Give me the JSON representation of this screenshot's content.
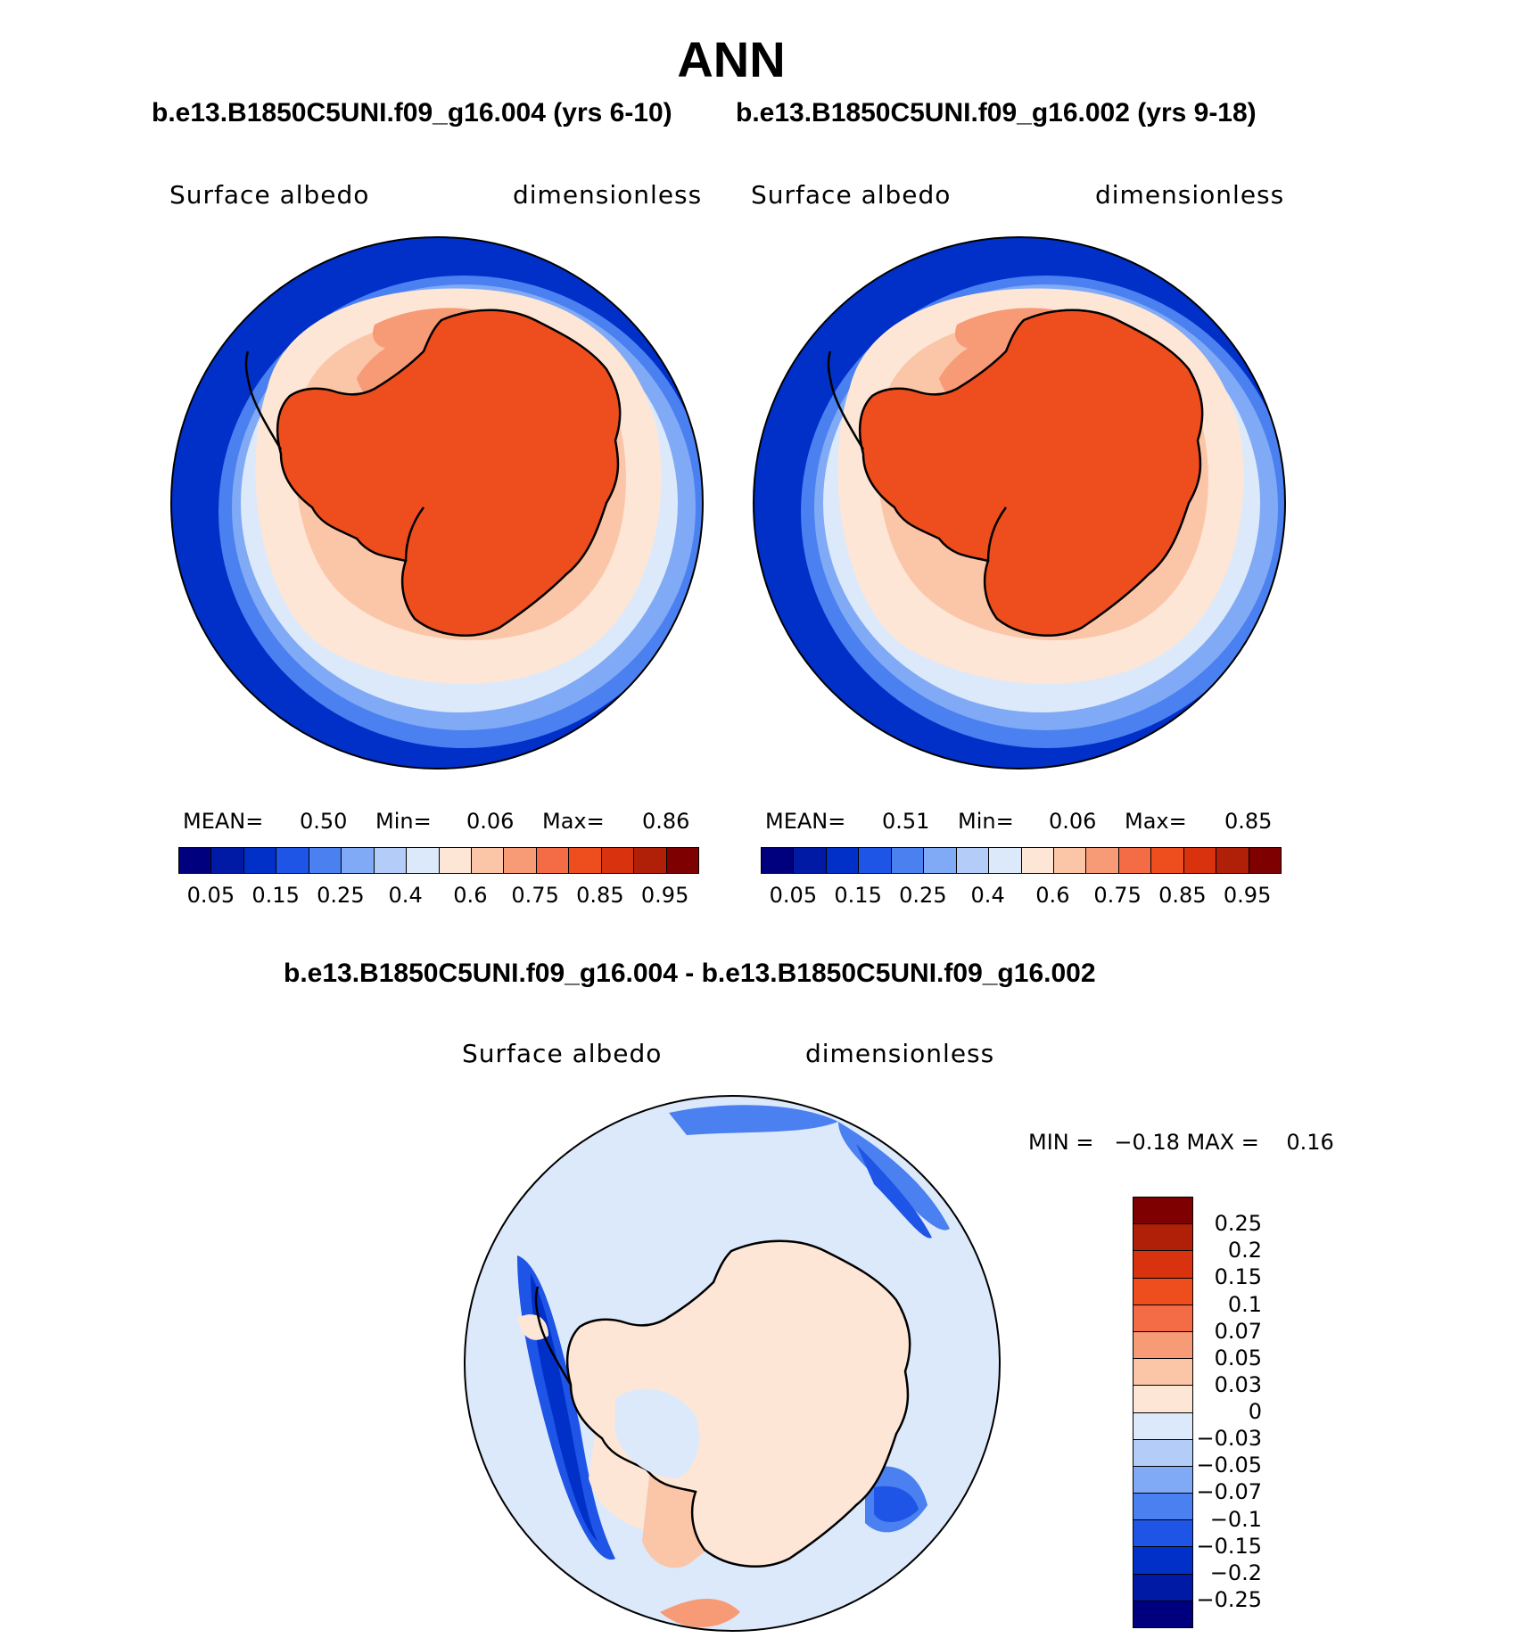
{
  "title": "ANN",
  "subtitle_left": "b.e13.B1850C5UNI.f09_g16.004 (yrs 6-10)",
  "subtitle_right": "b.e13.B1850C5UNI.f09_g16.002 (yrs 9-18)",
  "diff_title": "b.e13.B1850C5UNI.f09_g16.004 - b.e13.B1850C5UNI.f09_g16.002",
  "panels": [
    {
      "var": "Surface albedo",
      "units": "dimensionless",
      "mean_label": "MEAN=",
      "mean": "0.50",
      "min_label": "Min=",
      "min": "0.06",
      "max_label": "Max=",
      "max": "0.86"
    },
    {
      "var": "Surface albedo",
      "units": "dimensionless",
      "mean_label": "MEAN=",
      "mean": "0.51",
      "min_label": "Min=",
      "min": "0.06",
      "max_label": "Max=",
      "max": "0.85"
    }
  ],
  "diff_panel": {
    "var": "Surface albedo",
    "units": "dimensionless",
    "minmax": "MIN =   −0.18 MAX =    0.16"
  },
  "colorbar_ticks": [
    "0.05",
    "0.15",
    "0.25",
    "0.4",
    "0.6",
    "0.75",
    "0.85",
    "0.95"
  ],
  "colorbar_colors": [
    "#00007f",
    "#001aa5",
    "#0030c8",
    "#1f55e6",
    "#4a80f0",
    "#80aaf5",
    "#b4cdf8",
    "#dce9fb",
    "#fde6d6",
    "#fbc5a8",
    "#f79a76",
    "#f36c45",
    "#ee4d1e",
    "#d8330e",
    "#b01f08",
    "#7f0000"
  ],
  "diff_ticks": [
    "0.25",
    "0.2",
    "0.15",
    "0.1",
    "0.07",
    "0.05",
    "0.03",
    "0",
    "−0.03",
    "−0.05",
    "−0.07",
    "−0.1",
    "−0.15",
    "−0.2",
    "−0.25"
  ],
  "diff_colors": [
    "#7f0000",
    "#b01f08",
    "#d8330e",
    "#ee4d1e",
    "#f36c45",
    "#f79a76",
    "#fbc5a8",
    "#fde6d6",
    "#dce9fb",
    "#b4cdf8",
    "#80aaf5",
    "#4a80f0",
    "#1f55e6",
    "#0030c8",
    "#001aa5",
    "#00007f"
  ],
  "map_colors": {
    "ocean_deep": "#0030c8",
    "ocean_mid": "#4a80f0",
    "ocean_light": "#dce9fb",
    "seaice": "#fde6d6",
    "seaice2": "#fbc5a8",
    "land": "#ee4d1e",
    "diff_bg": "#dce9fb"
  }
}
